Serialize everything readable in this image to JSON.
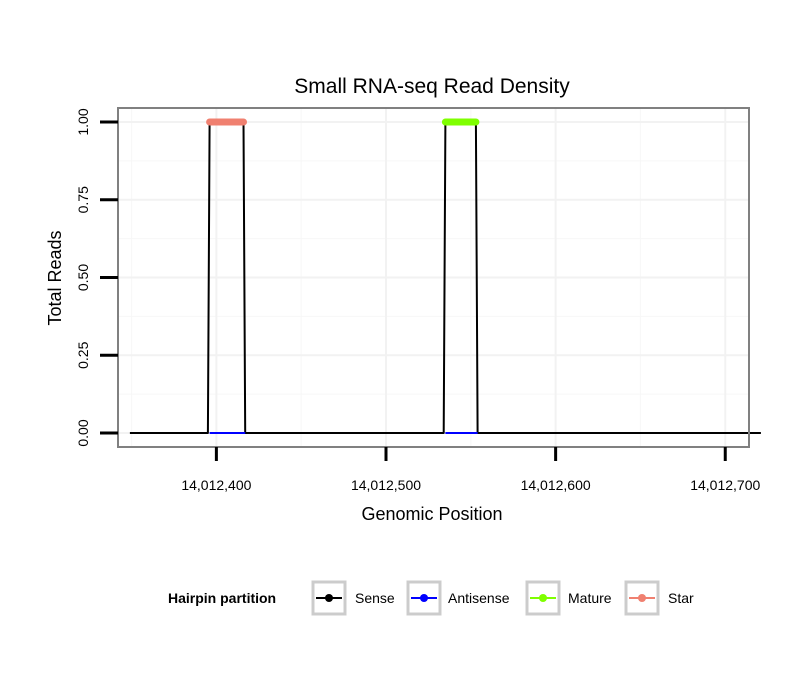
{
  "chart_data": {
    "type": "line",
    "title": "Small RNA-seq Read Density",
    "xlabel": "Genomic Position",
    "ylabel": "Total Reads",
    "xlim": [
      14012342,
      14012714
    ],
    "ylim": [
      -0.045,
      1.045
    ],
    "x_ticks": [
      14012400,
      14012500,
      14012600,
      14012700
    ],
    "x_tick_labels": [
      "14,012,400",
      "14,012,500",
      "14,012,600",
      "14,012,700"
    ],
    "y_ticks": [
      0,
      0.25,
      0.5,
      0.75,
      1.0
    ],
    "y_tick_labels": [
      "0.00",
      "0.25",
      "0.50",
      "0.75",
      "1.00"
    ],
    "grid": true,
    "legend": {
      "title": "Hairpin partition",
      "position": "bottom",
      "entries": [
        {
          "name": "Sense",
          "color": "#000000"
        },
        {
          "name": "Antisense",
          "color": "#0000ff"
        },
        {
          "name": "Mature",
          "color": "#7fff00"
        },
        {
          "name": "Star",
          "color": "#f08070"
        }
      ]
    },
    "series": [
      {
        "name": "Sense",
        "color": "#000000",
        "x": [
          14012349,
          14012395,
          14012396,
          14012416,
          14012417,
          14012534,
          14012535,
          14012553,
          14012554,
          14012721
        ],
        "y": [
          0,
          0,
          1,
          1,
          0,
          0,
          1,
          1,
          0,
          0
        ]
      },
      {
        "name": "Antisense",
        "color": "#0000ff",
        "x": [
          14012396,
          14012417,
          14012535,
          14012554
        ],
        "y": [
          0,
          0,
          0,
          0
        ]
      },
      {
        "name": "Mature",
        "color": "#7fff00",
        "x": [
          14012535,
          14012553
        ],
        "y": [
          1,
          1
        ]
      },
      {
        "name": "Star",
        "color": "#f08070",
        "x": [
          14012396,
          14012416
        ],
        "y": [
          1,
          1
        ]
      }
    ]
  }
}
